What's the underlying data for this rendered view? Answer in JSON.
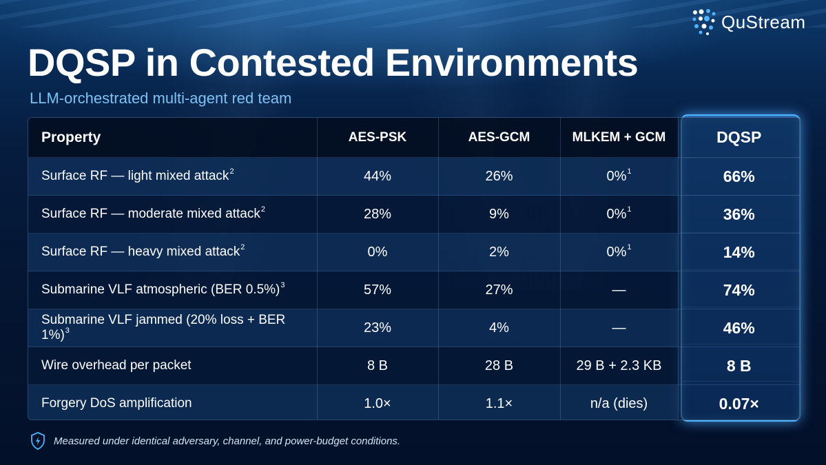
{
  "brand": {
    "name": "QuStream"
  },
  "title": "DQSP in Contested Environments",
  "subtitle": "LLM-orchestrated multi-agent red team",
  "table": {
    "headers": [
      "Property",
      "AES-PSK",
      "AES-GCM",
      "MLKEM + GCM",
      "DQSP"
    ],
    "rows": [
      {
        "property": "Surface RF — light mixed attack",
        "note": "2",
        "aes_psk": "44%",
        "aes_gcm": "26%",
        "mlkem_gcm": "0%",
        "mlkem_note": "1",
        "dqsp": "66%"
      },
      {
        "property": "Surface RF — moderate mixed attack",
        "note": "2",
        "aes_psk": "28%",
        "aes_gcm": "9%",
        "mlkem_gcm": "0%",
        "mlkem_note": "1",
        "dqsp": "36%"
      },
      {
        "property": "Surface RF — heavy mixed attack",
        "note": "2",
        "aes_psk": "0%",
        "aes_gcm": "2%",
        "mlkem_gcm": "0%",
        "mlkem_note": "1",
        "dqsp": "14%"
      },
      {
        "property": "Submarine VLF atmospheric (BER 0.5%)",
        "note": "3",
        "aes_psk": "57%",
        "aes_gcm": "27%",
        "mlkem_gcm": "—",
        "mlkem_note": "",
        "dqsp": "74%"
      },
      {
        "property": "Submarine VLF jammed (20% loss + BER 1%)",
        "note": "3",
        "aes_psk": "23%",
        "aes_gcm": "4%",
        "mlkem_gcm": "—",
        "mlkem_note": "",
        "dqsp": "46%"
      },
      {
        "property": "Wire overhead per packet",
        "note": "",
        "aes_psk": "8 B",
        "aes_gcm": "28 B",
        "mlkem_gcm": "29 B + 2.3 KB",
        "mlkem_note": "",
        "dqsp": "8 B"
      },
      {
        "property": "Forgery DoS amplification",
        "note": "",
        "aes_psk": "1.0×",
        "aes_gcm": "1.1×",
        "mlkem_gcm": "n/a (dies)",
        "mlkem_note": "",
        "dqsp": "0.07×"
      }
    ]
  },
  "footnote": "Measured under identical adversary, channel, and power-budget conditions.",
  "icons": {
    "logo": "qustream-dots-logo",
    "footnote": "shield-icon"
  },
  "colors": {
    "highlight": "#4fb3ff",
    "subtitle": "#7ec2f5"
  }
}
